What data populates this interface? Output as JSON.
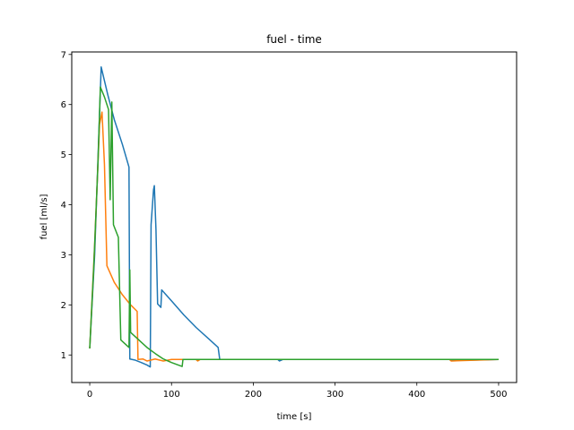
{
  "chart_data": {
    "type": "line",
    "title": "fuel - time",
    "xlabel": "time [s]",
    "ylabel": "fuel [ml/s]",
    "xlim": [
      -22,
      522
    ],
    "ylim": [
      0.45,
      7.05
    ],
    "xticks": [
      0,
      100,
      200,
      300,
      400,
      500
    ],
    "yticks": [
      1,
      2,
      3,
      4,
      5,
      6,
      7
    ],
    "grid": false,
    "legend": "none",
    "series": [
      {
        "color": "#1f77b4",
        "points": [
          [
            0,
            1.13
          ],
          [
            6,
            3.0
          ],
          [
            14,
            6.75
          ],
          [
            22,
            6.2
          ],
          [
            30,
            5.7
          ],
          [
            40,
            5.2
          ],
          [
            48,
            4.75
          ],
          [
            49,
            0.92
          ],
          [
            55,
            0.9
          ],
          [
            63,
            0.85
          ],
          [
            70,
            0.8
          ],
          [
            74,
            0.76
          ],
          [
            75,
            3.6
          ],
          [
            78,
            4.3
          ],
          [
            79,
            4.38
          ],
          [
            81,
            3.5
          ],
          [
            83,
            2.02
          ],
          [
            87,
            1.95
          ],
          [
            88,
            2.3
          ],
          [
            100,
            2.08
          ],
          [
            115,
            1.8
          ],
          [
            130,
            1.55
          ],
          [
            145,
            1.33
          ],
          [
            157,
            1.15
          ],
          [
            159,
            0.91
          ],
          [
            200,
            0.91
          ],
          [
            230,
            0.91
          ],
          [
            232,
            0.88
          ],
          [
            236,
            0.91
          ],
          [
            440,
            0.91
          ],
          [
            443,
            0.89
          ],
          [
            500,
            0.91
          ]
        ]
      },
      {
        "color": "#ff7f0e",
        "points": [
          [
            0,
            1.13
          ],
          [
            6,
            3.2
          ],
          [
            12,
            5.6
          ],
          [
            15,
            5.85
          ],
          [
            18,
            4.8
          ],
          [
            21,
            2.78
          ],
          [
            30,
            2.45
          ],
          [
            40,
            2.2
          ],
          [
            50,
            2.0
          ],
          [
            58,
            1.87
          ],
          [
            59,
            0.91
          ],
          [
            65,
            0.92
          ],
          [
            70,
            0.88
          ],
          [
            80,
            0.92
          ],
          [
            90,
            0.88
          ],
          [
            100,
            0.91
          ],
          [
            130,
            0.91
          ],
          [
            132,
            0.88
          ],
          [
            135,
            0.91
          ],
          [
            440,
            0.91
          ],
          [
            442,
            0.88
          ],
          [
            500,
            0.91
          ]
        ]
      },
      {
        "color": "#2ca02c",
        "points": [
          [
            0,
            1.13
          ],
          [
            5,
            2.8
          ],
          [
            10,
            4.8
          ],
          [
            13,
            6.35
          ],
          [
            18,
            6.15
          ],
          [
            23,
            5.9
          ],
          [
            25,
            4.1
          ],
          [
            27,
            6.05
          ],
          [
            29,
            3.6
          ],
          [
            35,
            3.35
          ],
          [
            38,
            1.3
          ],
          [
            48,
            1.15
          ],
          [
            49,
            2.7
          ],
          [
            50,
            1.45
          ],
          [
            60,
            1.3
          ],
          [
            70,
            1.15
          ],
          [
            80,
            1.03
          ],
          [
            90,
            0.92
          ],
          [
            100,
            0.85
          ],
          [
            113,
            0.77
          ],
          [
            114,
            0.91
          ],
          [
            200,
            0.91
          ],
          [
            500,
            0.91
          ]
        ]
      }
    ]
  }
}
